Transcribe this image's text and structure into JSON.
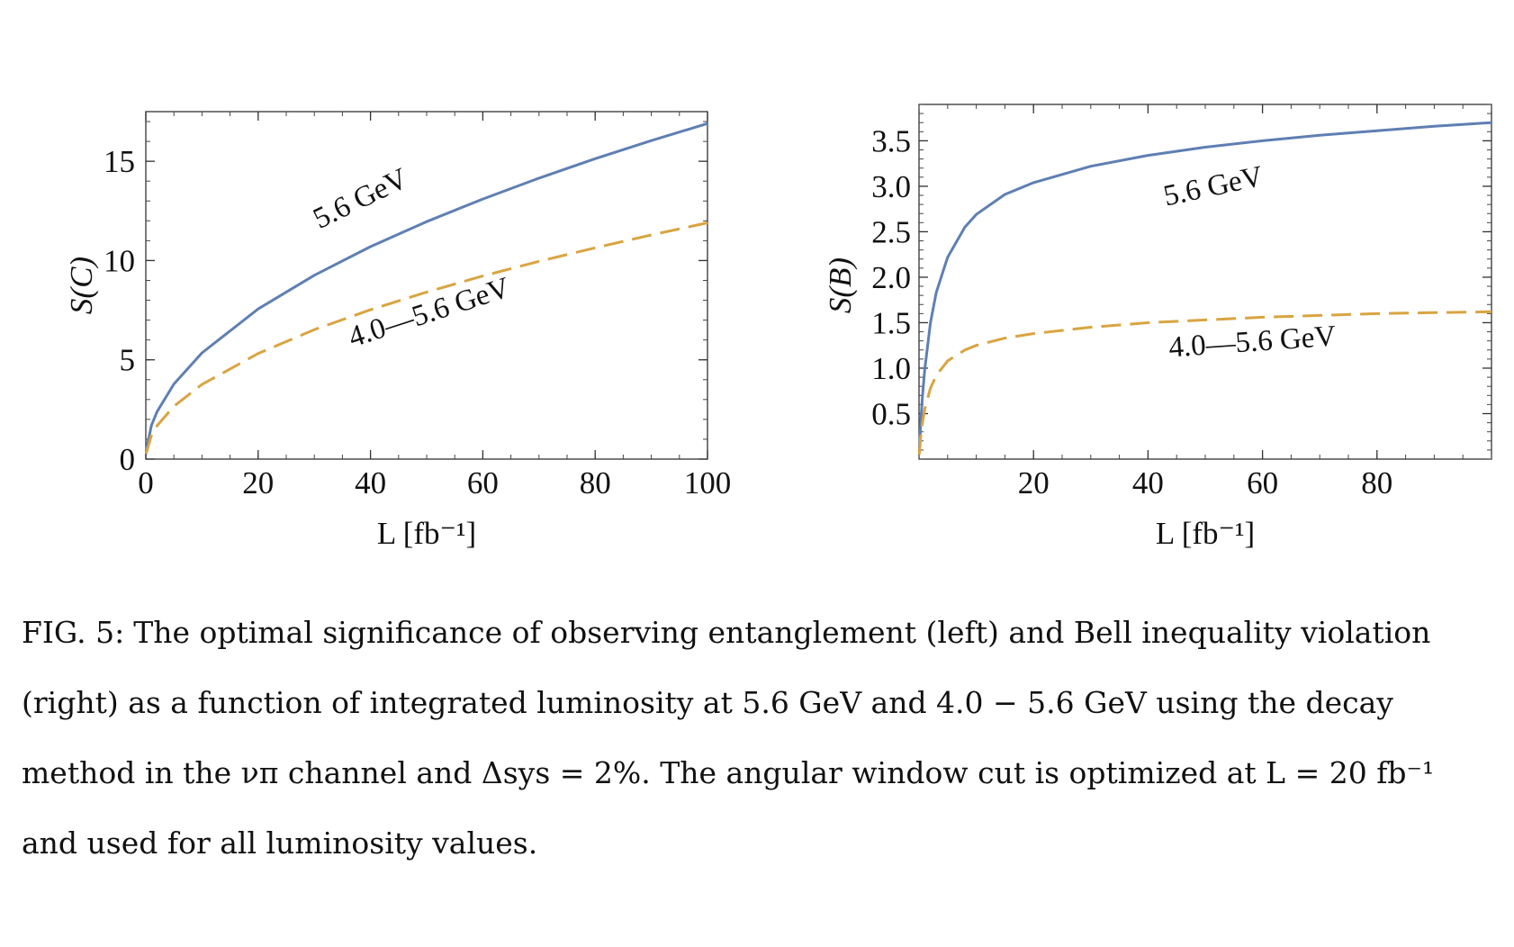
{
  "chart_data": [
    {
      "type": "line",
      "panel": "left",
      "xlabel": "L [fb⁻¹]",
      "ylabel": "S(C)",
      "xlim": [
        0,
        100
      ],
      "ylim": [
        0,
        17.5
      ],
      "xticks": [
        0,
        20,
        40,
        60,
        80,
        100
      ],
      "yticks": [
        0,
        5,
        10,
        15
      ],
      "series": [
        {
          "name": "5.6 GeV",
          "color": "#5f7fb3",
          "style": "solid",
          "x": [
            0.05,
            1,
            2,
            5,
            10,
            20,
            30,
            40,
            50,
            60,
            70,
            80,
            90,
            100
          ],
          "values": [
            0.38,
            1.69,
            2.39,
            3.78,
            5.35,
            7.56,
            9.26,
            10.7,
            11.96,
            13.1,
            14.15,
            15.13,
            16.04,
            16.9
          ]
        },
        {
          "name": "4.0—5.6 GeV",
          "color": "#d9a441",
          "style": "dashed",
          "x": [
            0.05,
            1,
            2,
            5,
            10,
            20,
            30,
            40,
            50,
            60,
            70,
            80,
            90,
            100
          ],
          "values": [
            0.27,
            1.19,
            1.68,
            2.66,
            3.76,
            5.32,
            6.52,
            7.52,
            8.41,
            9.22,
            9.96,
            10.64,
            11.29,
            11.9
          ]
        }
      ],
      "annotations": [
        "5.6 GeV",
        "4.0—5.6 GeV"
      ]
    },
    {
      "type": "line",
      "panel": "right",
      "xlabel": "L [fb⁻¹]",
      "ylabel": "S(B)",
      "xlim": [
        0,
        100
      ],
      "ylim": [
        0,
        3.9
      ],
      "xticks": [
        20,
        40,
        60,
        80
      ],
      "yticks": [
        0.5,
        1.0,
        1.5,
        2.0,
        2.5,
        3.0,
        3.5
      ],
      "ytick_labels": [
        "0.5",
        "1.0",
        "1.5",
        "2.0",
        "2.5",
        "3.0",
        "3.5"
      ],
      "series": [
        {
          "name": "5.6 GeV",
          "color": "#5f7fb3",
          "style": "solid",
          "x": [
            0.05,
            0.3,
            0.6,
            1,
            2,
            3,
            5,
            8,
            10,
            15,
            20,
            30,
            40,
            50,
            60,
            70,
            80,
            90,
            100
          ],
          "values": [
            0.08,
            0.4,
            0.69,
            0.99,
            1.5,
            1.83,
            2.22,
            2.55,
            2.69,
            2.91,
            3.04,
            3.22,
            3.34,
            3.43,
            3.5,
            3.56,
            3.61,
            3.66,
            3.7
          ]
        },
        {
          "name": "4.0—5.6 GeV",
          "color": "#d9a441",
          "style": "dashed",
          "x": [
            0.05,
            0.3,
            0.6,
            1,
            2,
            3,
            5,
            8,
            10,
            15,
            20,
            30,
            40,
            50,
            60,
            70,
            80,
            90,
            100
          ],
          "values": [
            0.05,
            0.25,
            0.4,
            0.55,
            0.78,
            0.92,
            1.08,
            1.2,
            1.25,
            1.33,
            1.38,
            1.45,
            1.5,
            1.53,
            1.56,
            1.58,
            1.6,
            1.61,
            1.62
          ]
        }
      ],
      "annotations": [
        "5.6 GeV",
        "4.0—5.6 GeV"
      ]
    }
  ],
  "caption": {
    "label": "FIG. 5:",
    "text": "The optimal significance of observing entanglement (left) and Bell inequality violation (right) as a function of integrated luminosity at 5.6 GeV and 4.0 − 5.6 GeV using the decay method in the νπ channel and Δsys = 2%. The angular window cut is optimized at L = 20 fb⁻¹ and used for all luminosity values."
  }
}
